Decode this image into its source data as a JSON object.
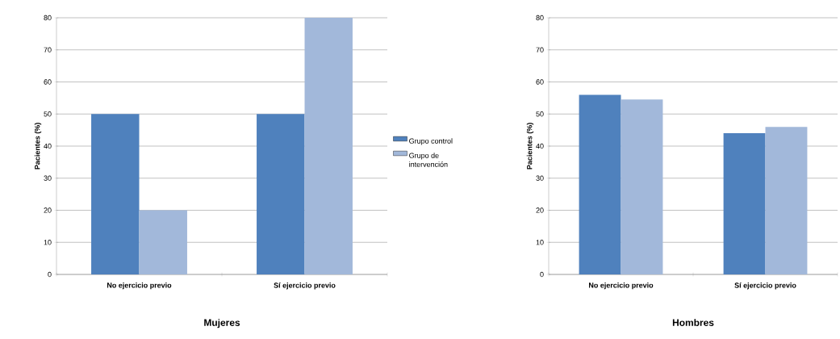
{
  "chart_data": [
    {
      "type": "bar",
      "xlabel": "Mujeres",
      "ylabel": "Pacientes (%)",
      "categories": [
        "No ejercicio previo",
        "Sí ejercicio previo"
      ],
      "series": [
        {
          "name": "Grupo control",
          "color": "#4f81bd",
          "values": [
            50,
            50
          ]
        },
        {
          "name": "Grupo de intervención",
          "color": "#a2b8da",
          "values": [
            20,
            80
          ]
        }
      ],
      "ylim": [
        0,
        80
      ],
      "yticks": [
        0,
        10,
        20,
        30,
        40,
        50,
        60,
        70,
        80
      ],
      "grid": "y",
      "legend": "right"
    },
    {
      "type": "bar",
      "xlabel": "Hombres",
      "ylabel": "Pacientes (%)",
      "categories": [
        "No ejercicio previo",
        "Sí ejercicio previo"
      ],
      "series": [
        {
          "color": "#4f81bd",
          "values": [
            56,
            44
          ]
        },
        {
          "color": "#a2b8da",
          "values": [
            54.5,
            46
          ]
        }
      ],
      "ylim": [
        0,
        80
      ],
      "yticks": [
        0,
        10,
        20,
        30,
        40,
        50,
        60,
        70,
        80
      ],
      "grid": "y"
    }
  ]
}
